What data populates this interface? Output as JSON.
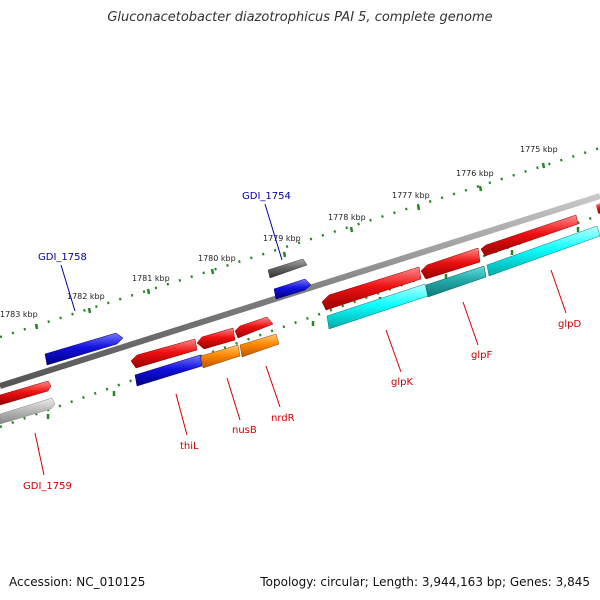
{
  "title": "Gluconacetobacter diazotrophicus PAI 5, complete genome",
  "footer": {
    "accession": "Accession: NC_010125",
    "summary": "Topology: circular; Length: 3,944,163 bp; Genes: 3,845"
  },
  "scale_labels": [
    "1783 kbp",
    "1782 kbp",
    "1781 kbp",
    "1780 kbp",
    "1779 kbp",
    "1778 kbp",
    "1777 kbp",
    "1776 kbp",
    "1775 kbp"
  ],
  "gene_labels": {
    "gdi_1758": "GDI_1758",
    "gdi_1754": "GDI_1754",
    "gdi_1759": "GDI_1759",
    "thil": "thiL",
    "nusb": "nusB",
    "nrdr": "nrdR",
    "glpk": "glpK",
    "glpf": "glpF",
    "glpd": "glpD"
  },
  "colors": {
    "backbone": "#7a7a7a",
    "red": "#ee1111",
    "blue": "#1111dd",
    "orange": "#ff8800",
    "cyan": "#11ffff",
    "teal": "#22bbbb",
    "gray_dark": "#666666",
    "gray_light": "#bbbbbb",
    "tick_green": "#228822",
    "label_red": "#cc0000",
    "label_blue": "#0000aa"
  }
}
